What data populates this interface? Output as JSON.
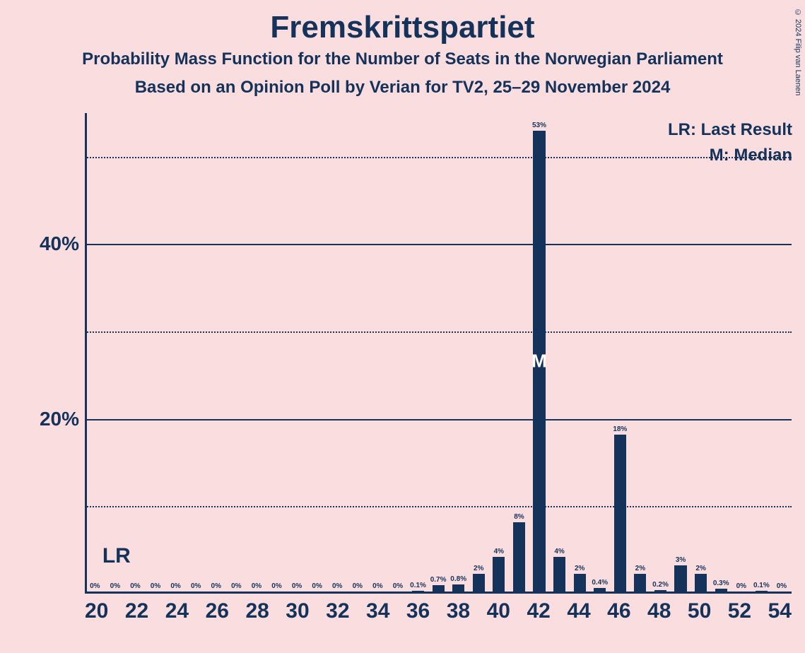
{
  "colors": {
    "background": "#fadedf",
    "text": "#14325a",
    "bar": "#14325a",
    "axis": "#14325a",
    "grid": "#14325a"
  },
  "title": "Fremskrittspartiet",
  "subtitle": "Probability Mass Function for the Number of Seats in the Norwegian Parliament",
  "subtitle2": "Based on an Opinion Poll by Verian for TV2, 25–29 November 2024",
  "legend": {
    "lr": "LR: Last Result",
    "m": "M: Median"
  },
  "copyright": "© 2024 Filip van Laenen",
  "chart": {
    "type": "bar",
    "y": {
      "min": 0,
      "max": 55,
      "major_ticks": [
        20,
        40
      ],
      "minor_ticks": [
        10,
        30,
        50
      ],
      "tick_labels": {
        "20": "20%",
        "40": "40%"
      }
    },
    "x": {
      "min": 20,
      "max": 54,
      "tick_step": 2
    },
    "lr_seat": 21,
    "lr_label": "LR",
    "median_seat": 42,
    "median_label": "M",
    "bars": [
      {
        "seat": 20,
        "value": 0,
        "label": "0%"
      },
      {
        "seat": 21,
        "value": 0,
        "label": "0%"
      },
      {
        "seat": 22,
        "value": 0,
        "label": "0%"
      },
      {
        "seat": 23,
        "value": 0,
        "label": "0%"
      },
      {
        "seat": 24,
        "value": 0,
        "label": "0%"
      },
      {
        "seat": 25,
        "value": 0,
        "label": "0%"
      },
      {
        "seat": 26,
        "value": 0,
        "label": "0%"
      },
      {
        "seat": 27,
        "value": 0,
        "label": "0%"
      },
      {
        "seat": 28,
        "value": 0,
        "label": "0%"
      },
      {
        "seat": 29,
        "value": 0,
        "label": "0%"
      },
      {
        "seat": 30,
        "value": 0,
        "label": "0%"
      },
      {
        "seat": 31,
        "value": 0,
        "label": "0%"
      },
      {
        "seat": 32,
        "value": 0,
        "label": "0%"
      },
      {
        "seat": 33,
        "value": 0,
        "label": "0%"
      },
      {
        "seat": 34,
        "value": 0,
        "label": "0%"
      },
      {
        "seat": 35,
        "value": 0,
        "label": "0%"
      },
      {
        "seat": 36,
        "value": 0.1,
        "label": "0.1%"
      },
      {
        "seat": 37,
        "value": 0.7,
        "label": "0.7%"
      },
      {
        "seat": 38,
        "value": 0.8,
        "label": "0.8%"
      },
      {
        "seat": 39,
        "value": 2,
        "label": "2%"
      },
      {
        "seat": 40,
        "value": 4,
        "label": "4%"
      },
      {
        "seat": 41,
        "value": 8,
        "label": "8%"
      },
      {
        "seat": 42,
        "value": 53,
        "label": "53%"
      },
      {
        "seat": 43,
        "value": 4,
        "label": "4%"
      },
      {
        "seat": 44,
        "value": 2,
        "label": "2%"
      },
      {
        "seat": 45,
        "value": 0.4,
        "label": "0.4%"
      },
      {
        "seat": 46,
        "value": 18,
        "label": "18%"
      },
      {
        "seat": 47,
        "value": 2,
        "label": "2%"
      },
      {
        "seat": 48,
        "value": 0.2,
        "label": "0.2%"
      },
      {
        "seat": 49,
        "value": 3,
        "label": "3%"
      },
      {
        "seat": 50,
        "value": 2,
        "label": "2%"
      },
      {
        "seat": 51,
        "value": 0.3,
        "label": "0.3%"
      },
      {
        "seat": 52,
        "value": 0,
        "label": "0%"
      },
      {
        "seat": 53,
        "value": 0.1,
        "label": "0.1%"
      },
      {
        "seat": 54,
        "value": 0,
        "label": "0%"
      }
    ]
  }
}
